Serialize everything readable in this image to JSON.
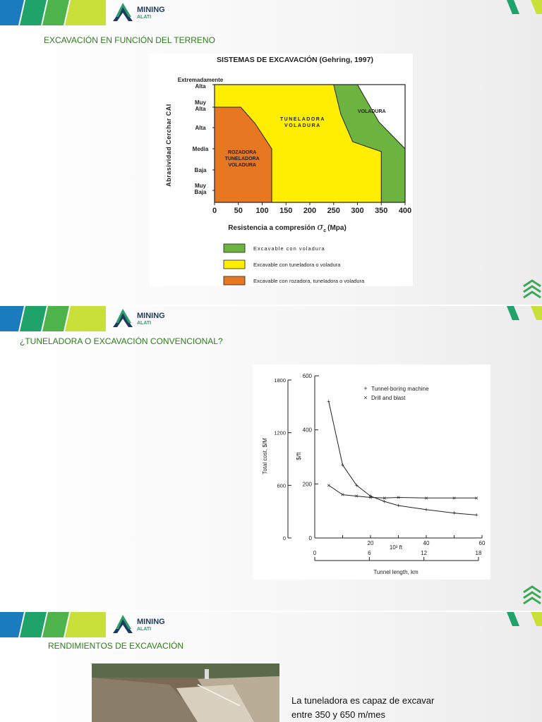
{
  "brand": {
    "line1": "MINING",
    "line2": "ALATI"
  },
  "slide1": {
    "title": "EXCAVACIÓN EN FUNCIÓN DEL TERRENO"
  },
  "slide2": {
    "title": "¿TUNELADORA O EXCAVACIÓN CONVENCIONAL?"
  },
  "slide3": {
    "title": "RENDIMIENTOS DE EXCAVACIÓN",
    "text_line1": "La tuneladora  es capaz de excavar",
    "text_line2": "entre  350 y 650 m/mes"
  },
  "colors": {
    "green_title": "#2d7d1b",
    "zone_green": "#6db33f",
    "zone_yellow": "#ffee00",
    "zone_orange": "#e87722"
  },
  "chart_data": [
    {
      "type": "area",
      "title": "SISTEMAS DE EXCAVACIÓN (Gehring, 1997)",
      "xlabel": "Resistencia a compresión",
      "xlabel_symbol": "σ",
      "xlabel_sub": "c",
      "xlabel_unit": "(Mpa)",
      "ylabel": "Abrasividad Cerchar CAI",
      "xlim": [
        0,
        400
      ],
      "x_ticks": [
        "0",
        "50",
        "100",
        "150",
        "200",
        "250",
        "300",
        "350",
        "400"
      ],
      "y_ticks": [
        {
          "l1": "Extremadamente",
          "l2": "Alta"
        },
        {
          "l1": "Muy",
          "l2": "Alta"
        },
        {
          "l1": "Alta",
          "l2": ""
        },
        {
          "l1": "Media",
          "l2": ""
        },
        {
          "l1": "Baja",
          "l2": ""
        },
        {
          "l1": "Muy",
          "l2": "Baja"
        }
      ],
      "zones": [
        {
          "label_lines": [
            "ROZADORA",
            "TUNELADORA",
            "VOLADURA"
          ],
          "legend": "Excavable con rozadora, tuneladora o voladura",
          "color": "#e87722"
        },
        {
          "label_lines": [
            "TUNELADORA",
            "VOLADURA"
          ],
          "legend": "Excavable con tuneladora o voladura",
          "color": "#ffee00"
        },
        {
          "label_lines": [
            "VOLADURA"
          ],
          "legend": "Excavable con voladura",
          "color": "#6db33f"
        }
      ]
    },
    {
      "type": "line",
      "xlabel": "Tunnel length, km",
      "x2label": "10³ ft",
      "ylabel_left": "Total cost, $/M",
      "ylabel_right": "$/ft",
      "x_km_ticks": [
        "0",
        "6",
        "12",
        "18"
      ],
      "x_ft_ticks": [
        "20",
        "40",
        "60"
      ],
      "y_left_ticks": [
        "0",
        "600",
        "1200",
        "1800"
      ],
      "y_right_ticks": [
        "200",
        "400",
        "600"
      ],
      "xlim_ft": [
        0,
        60
      ],
      "ylim_ft": [
        0,
        600
      ],
      "series": [
        {
          "name": "Tunnel-boring machine",
          "marker": "+",
          "x": [
            5,
            10,
            15,
            20,
            25,
            30,
            40,
            50,
            58
          ],
          "y": [
            505,
            270,
            195,
            155,
            135,
            120,
            105,
            92,
            85
          ]
        },
        {
          "name": "Drill and blast",
          "marker": "×",
          "x": [
            5,
            10,
            15,
            20,
            25,
            30,
            40,
            50,
            58
          ],
          "y": [
            195,
            160,
            155,
            150,
            148,
            150,
            148,
            148,
            148
          ]
        }
      ]
    }
  ]
}
